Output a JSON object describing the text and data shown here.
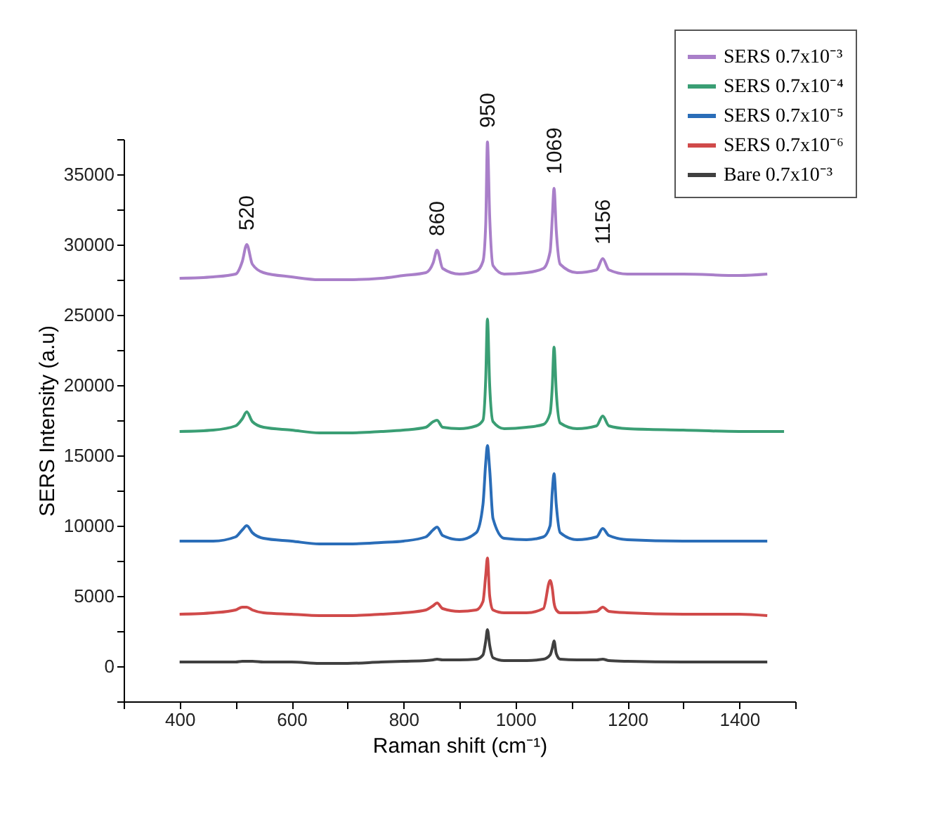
{
  "chart_data": {
    "type": "line",
    "xlabel": "Raman shift (cm⁻¹)",
    "ylabel": "SERS Intensity (a.u)",
    "x": [
      400,
      460,
      500,
      512,
      520,
      530,
      550,
      600,
      650,
      700,
      760,
      800,
      840,
      853,
      860,
      870,
      900,
      930,
      942,
      947,
      950,
      954,
      960,
      980,
      1020,
      1050,
      1062,
      1066,
      1069,
      1073,
      1080,
      1110,
      1145,
      1156,
      1167,
      1200,
      1300,
      1400,
      1450
    ],
    "series": [
      {
        "name": "SERS 0.7x10⁻³",
        "color": "#a97fc9",
        "values": [
          27600,
          27700,
          27900,
          28800,
          30000,
          28600,
          28000,
          27700,
          27500,
          27500,
          27600,
          27800,
          28000,
          28700,
          29600,
          28300,
          27900,
          28100,
          28800,
          31500,
          37300,
          32000,
          28500,
          27900,
          28000,
          28300,
          29500,
          32000,
          34000,
          31000,
          28600,
          28000,
          28200,
          29000,
          28200,
          27900,
          27900,
          27800,
          27900
        ]
      },
      {
        "name": "SERS 0.7x10⁻⁴",
        "color": "#3a9e74",
        "x": [
          400,
          460,
          500,
          512,
          520,
          530,
          550,
          600,
          650,
          700,
          760,
          800,
          840,
          853,
          860,
          870,
          900,
          930,
          942,
          947,
          950,
          954,
          960,
          980,
          1020,
          1050,
          1062,
          1066,
          1069,
          1073,
          1080,
          1110,
          1145,
          1156,
          1167,
          1200,
          1300,
          1400,
          1450,
          1480
        ],
        "values": [
          16700,
          16800,
          17100,
          17600,
          18100,
          17400,
          17000,
          16800,
          16600,
          16600,
          16700,
          16800,
          17000,
          17400,
          17500,
          17000,
          16900,
          17100,
          17500,
          20500,
          24700,
          20000,
          17400,
          16900,
          17000,
          17200,
          18000,
          20000,
          22700,
          19500,
          17300,
          16900,
          17100,
          17800,
          17100,
          16900,
          16800,
          16700,
          16700,
          16700
        ]
      },
      {
        "name": "SERS 0.7x10⁻⁵",
        "color": "#2a6db8",
        "values": [
          8900,
          8900,
          9200,
          9700,
          10000,
          9500,
          9100,
          8900,
          8700,
          8700,
          8800,
          8900,
          9200,
          9700,
          9900,
          9300,
          9000,
          9500,
          11500,
          14500,
          15700,
          14000,
          10500,
          9100,
          9000,
          9200,
          10000,
          12500,
          13700,
          11500,
          9500,
          9000,
          9200,
          9800,
          9300,
          9000,
          8900,
          8900,
          8900
        ]
      },
      {
        "name": "SERS 0.7x10⁻⁶",
        "color": "#d04a4a",
        "values": [
          3700,
          3800,
          4000,
          4200,
          4200,
          4000,
          3800,
          3700,
          3600,
          3600,
          3700,
          3800,
          4000,
          4300,
          4500,
          4100,
          3900,
          4000,
          4600,
          6500,
          7700,
          5000,
          4000,
          3800,
          3800,
          4100,
          6100,
          5500,
          4500,
          4000,
          3800,
          3800,
          3900,
          4200,
          3900,
          3800,
          3700,
          3700,
          3600
        ]
      },
      {
        "name": "Bare  0.7x10⁻³",
        "color": "#404040",
        "values": [
          300,
          300,
          300,
          350,
          350,
          350,
          300,
          300,
          200,
          200,
          300,
          350,
          400,
          450,
          500,
          450,
          450,
          500,
          800,
          1800,
          2600,
          1500,
          600,
          400,
          400,
          500,
          800,
          1300,
          1800,
          900,
          500,
          450,
          450,
          500,
          400,
          350,
          300,
          300,
          300
        ]
      }
    ],
    "annotations": [
      {
        "text": "520",
        "x": 520,
        "y": 30000
      },
      {
        "text": "860",
        "x": 860,
        "y": 29600
      },
      {
        "text": "950",
        "x": 950,
        "y": 37300
      },
      {
        "text": "1069",
        "x": 1069,
        "y": 34000
      },
      {
        "text": "1156",
        "x": 1156,
        "y": 29000
      }
    ],
    "xlim": [
      300,
      1500
    ],
    "xticks": [
      {
        "value": 300,
        "label": null
      },
      400,
      {
        "value": 500,
        "label": null
      },
      600,
      {
        "value": 700,
        "label": null
      },
      800,
      {
        "value": 900,
        "label": null
      },
      1000,
      {
        "value": 1100,
        "label": null
      },
      1200,
      {
        "value": 1300,
        "label": null
      },
      1400,
      {
        "value": 1500,
        "label": null
      }
    ],
    "ylim": [
      -2500,
      37500
    ],
    "yticks": [
      {
        "value": -2500,
        "label": null
      },
      0,
      {
        "value": 2500,
        "label": null
      },
      5000,
      {
        "value": 7500,
        "label": null
      },
      10000,
      {
        "value": 12500,
        "label": null
      },
      15000,
      {
        "value": 17500,
        "label": null
      },
      20000,
      {
        "value": 22500,
        "label": null
      },
      25000,
      {
        "value": 27500,
        "label": null
      },
      30000,
      {
        "value": 32500,
        "label": null
      },
      35000,
      {
        "value": 37500,
        "label": null
      }
    ],
    "grid": false,
    "legend": "top right"
  }
}
